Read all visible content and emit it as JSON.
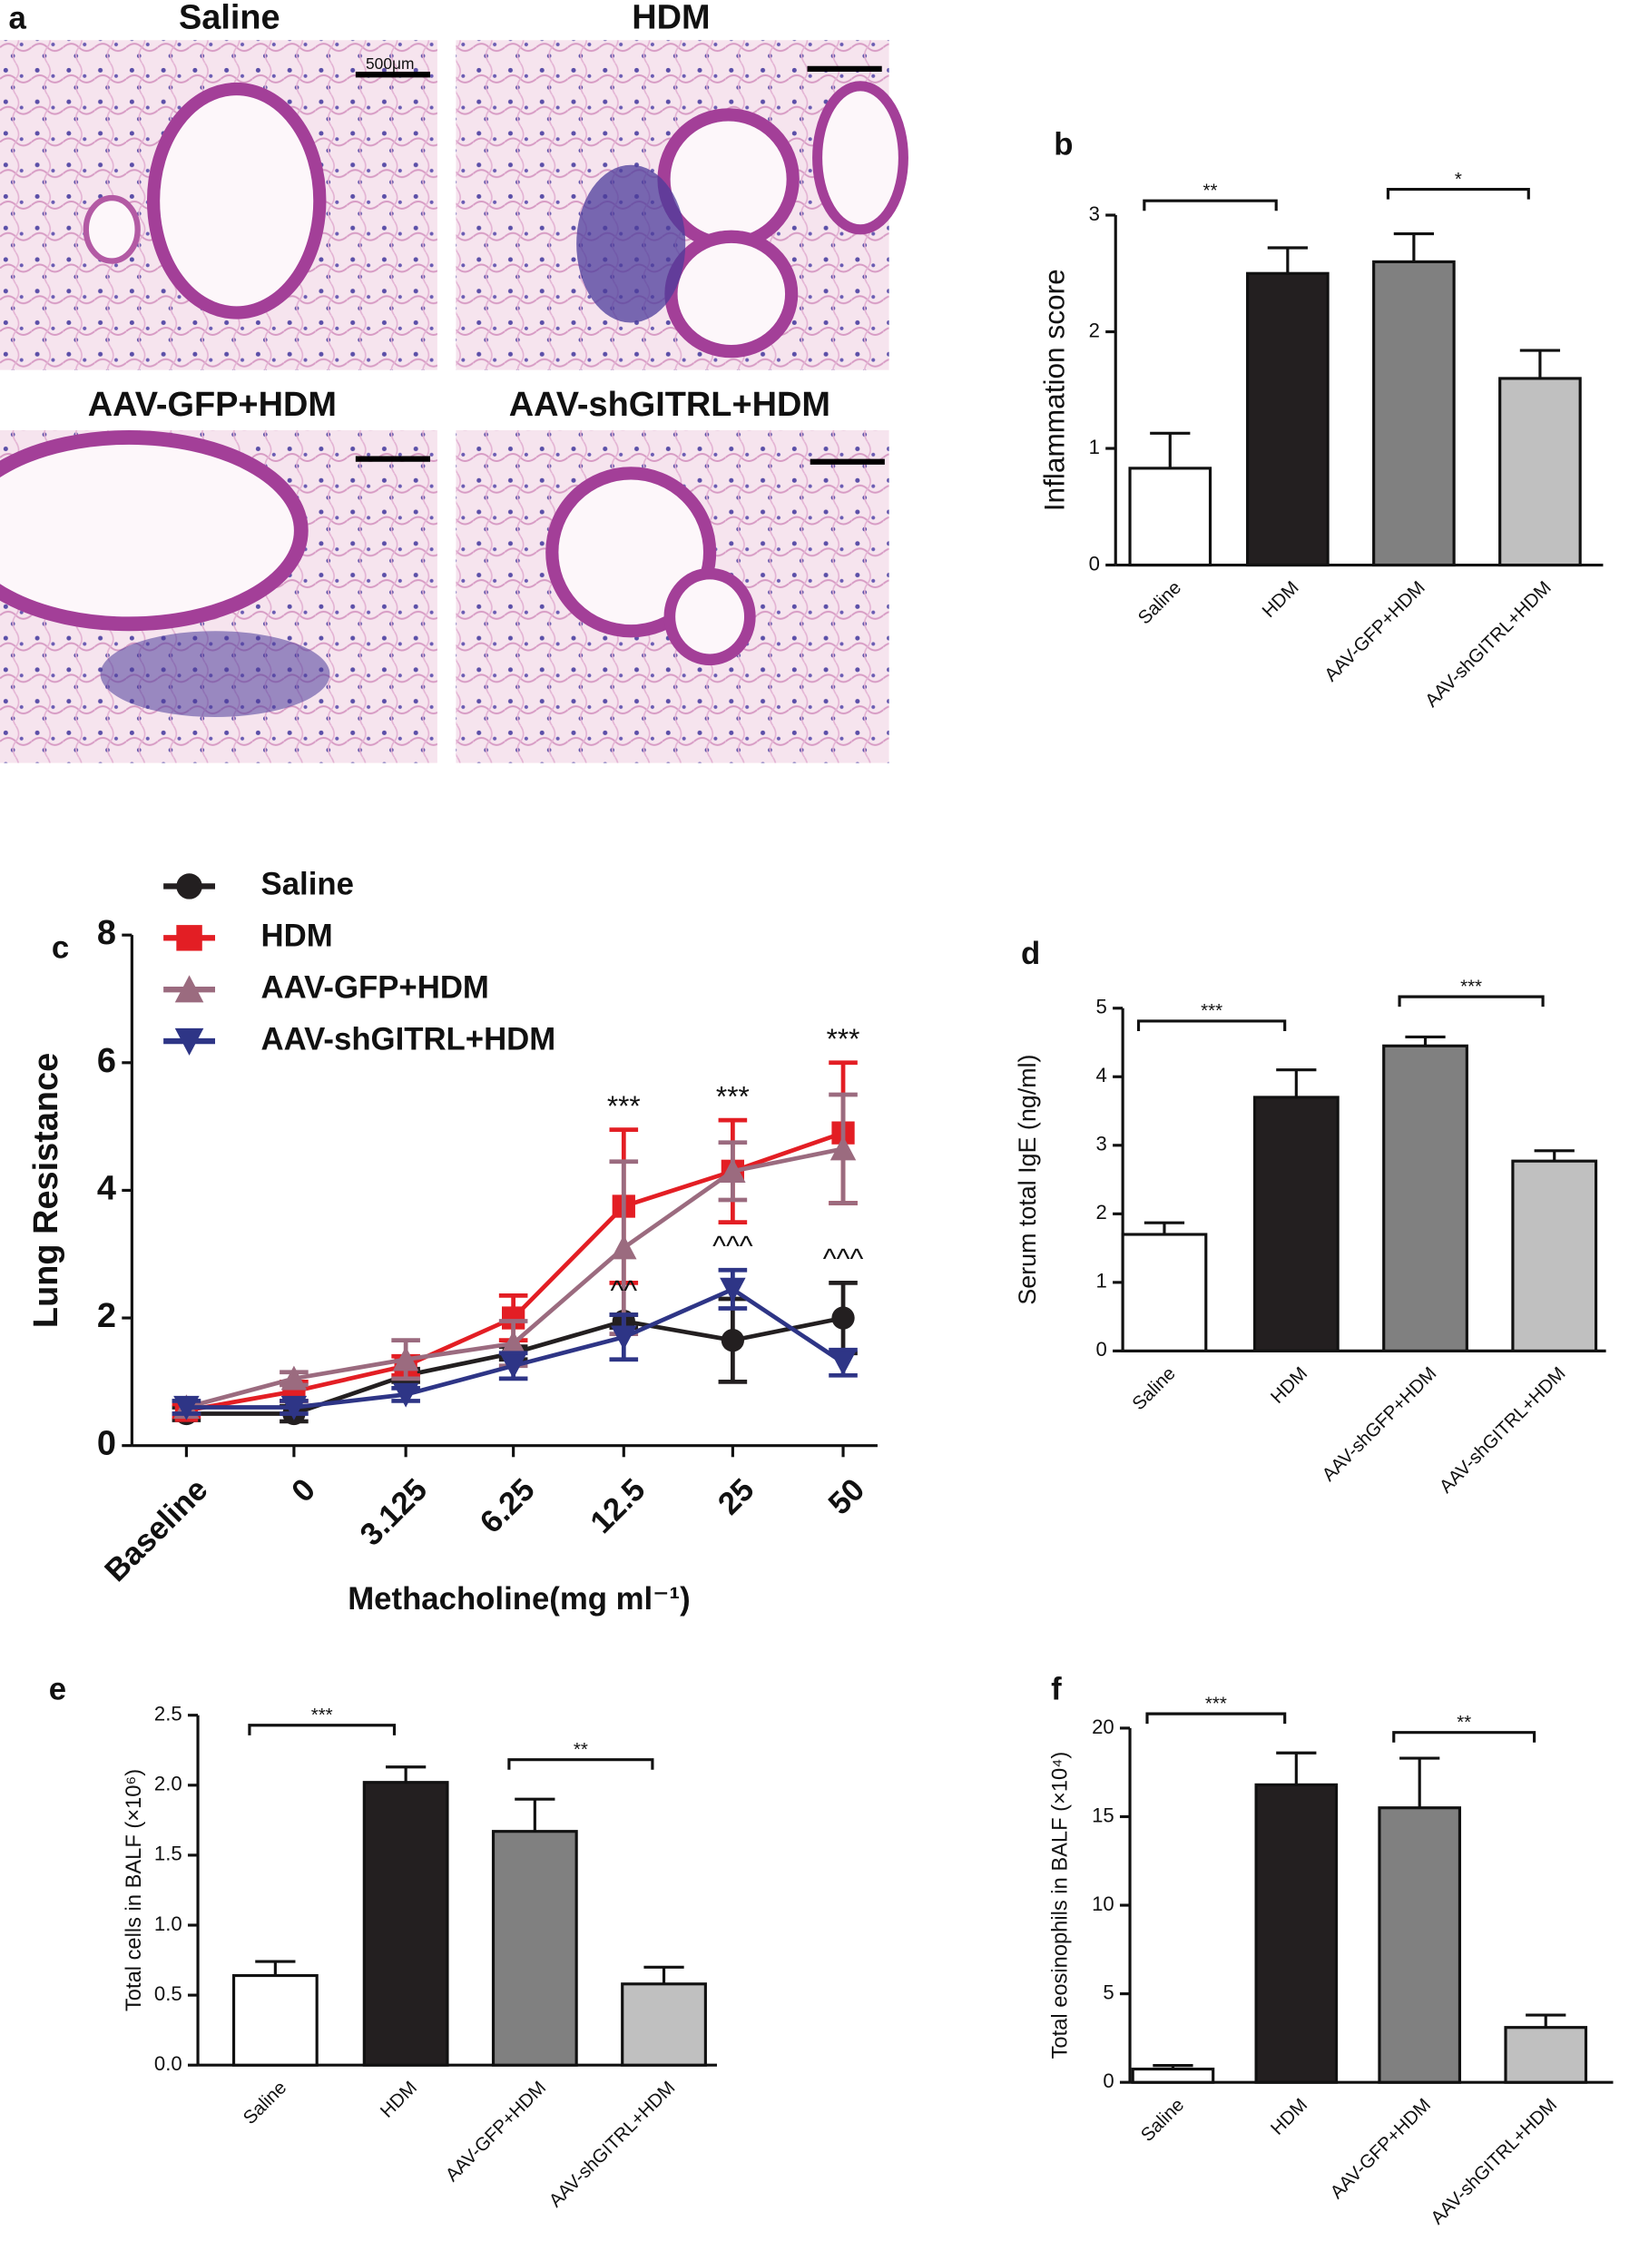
{
  "figure_a": {
    "panel": "a",
    "images": [
      {
        "title": "Saline",
        "scale_bar": "500μm"
      },
      {
        "title": "HDM"
      },
      {
        "title": "AAV-GFP+HDM"
      },
      {
        "title": "AAV-shGITRL+HDM"
      }
    ]
  },
  "chart_data": [
    {
      "type": "bar",
      "panel": "b",
      "ylabel": "Inflammation score",
      "categories": [
        "Saline",
        "HDM",
        "AAV-GFP+HDM",
        "AAV-shGITRL+HDM"
      ],
      "values": [
        0.83,
        2.5,
        2.6,
        1.6
      ],
      "errors": [
        0.3,
        0.22,
        0.24,
        0.24
      ],
      "colors": [
        "#ffffff",
        "#231f20",
        "#808080",
        "#c0c0c0"
      ],
      "ylim": [
        0,
        3
      ],
      "yticks": [
        0,
        1,
        2,
        3
      ],
      "annotations": [
        {
          "text": "**",
          "between": [
            "Saline",
            "HDM"
          ]
        },
        {
          "text": "*",
          "between": [
            "AAV-GFP+HDM",
            "AAV-shGITRL+HDM"
          ]
        }
      ]
    },
    {
      "type": "line",
      "panel": "c",
      "xlabel": "Methacholine(mg ml⁻¹)",
      "ylabel": "Lung Resistance",
      "categories": [
        "Baseline",
        "0",
        "3.125",
        "6.25",
        "12.5",
        "25",
        "50"
      ],
      "series": [
        {
          "name": "Saline",
          "color": "#231f20",
          "marker": "circle",
          "values": [
            0.5,
            0.5,
            1.1,
            1.45,
            1.95,
            1.65,
            2.0
          ],
          "errors": [
            0.1,
            0.12,
            0.1,
            0.1,
            0.1,
            0.65,
            0.55
          ]
        },
        {
          "name": "HDM",
          "color": "#e31e24",
          "marker": "square",
          "values": [
            0.55,
            0.85,
            1.25,
            2.0,
            3.75,
            4.3,
            4.9
          ],
          "errors": [
            0.1,
            0.15,
            0.15,
            0.35,
            1.2,
            0.8,
            1.1
          ]
        },
        {
          "name": "AAV-GFP+HDM",
          "color": "#9b6b7f",
          "marker": "triangle-up",
          "values": [
            0.6,
            1.05,
            1.35,
            1.6,
            3.1,
            4.3,
            4.65
          ],
          "errors": [
            0.1,
            0.1,
            0.3,
            0.35,
            1.35,
            0.45,
            0.85
          ]
        },
        {
          "name": "AAV-shGITRL+HDM",
          "color": "#2e3586",
          "marker": "triangle-down",
          "values": [
            0.6,
            0.6,
            0.8,
            1.25,
            1.7,
            2.45,
            1.3
          ],
          "errors": [
            0.1,
            0.1,
            0.1,
            0.2,
            0.35,
            0.3,
            0.2
          ]
        }
      ],
      "ylim": [
        0,
        8
      ],
      "yticks": [
        0,
        2,
        4,
        6,
        8
      ],
      "annotations": [
        {
          "text": "***",
          "category": "12.5",
          "above": [
            "HDM",
            "AAV-GFP+HDM"
          ]
        },
        {
          "text": "***",
          "category": "25",
          "above": [
            "HDM",
            "AAV-GFP+HDM"
          ]
        },
        {
          "text": "***",
          "category": "50",
          "above": [
            "HDM",
            "AAV-GFP+HDM"
          ]
        },
        {
          "text": "^^",
          "category": "12.5",
          "above": [
            "Saline",
            "AAV-shGITRL+HDM"
          ]
        },
        {
          "text": "^^^",
          "category": "25",
          "above": [
            "Saline",
            "AAV-shGITRL+HDM"
          ]
        },
        {
          "text": "^^^",
          "category": "50",
          "above": [
            "Saline",
            "AAV-shGITRL+HDM"
          ]
        }
      ]
    },
    {
      "type": "bar",
      "panel": "d",
      "ylabel": "Serum total IgE (ng/ml)",
      "categories": [
        "Saline",
        "HDM",
        "AAV-shGFP+HDM",
        "AAV-shGITRL+HDM"
      ],
      "values": [
        1.7,
        3.7,
        4.45,
        2.77
      ],
      "errors": [
        0.17,
        0.4,
        0.13,
        0.15
      ],
      "colors": [
        "#ffffff",
        "#231f20",
        "#808080",
        "#c0c0c0"
      ],
      "ylim": [
        0,
        5
      ],
      "yticks": [
        0,
        1,
        2,
        3,
        4,
        5
      ],
      "annotations": [
        {
          "text": "***",
          "between": [
            "Saline",
            "HDM"
          ]
        },
        {
          "text": "***",
          "between": [
            "AAV-shGFP+HDM",
            "AAV-shGITRL+HDM"
          ]
        }
      ]
    },
    {
      "type": "bar",
      "panel": "e",
      "ylabel": "Total cells in BALF (×10⁶)",
      "categories": [
        "Saline",
        "HDM",
        "AAV-GFP+HDM",
        "AAV-shGITRL+HDM"
      ],
      "values": [
        0.64,
        2.02,
        1.67,
        0.58
      ],
      "errors": [
        0.1,
        0.11,
        0.23,
        0.12
      ],
      "colors": [
        "#ffffff",
        "#231f20",
        "#808080",
        "#c0c0c0"
      ],
      "ylim": [
        0,
        2.5
      ],
      "yticks": [
        {
          "value": 0,
          "label": "0.0"
        },
        0.5,
        {
          "value": 1,
          "label": "1.0"
        },
        1.5,
        {
          "value": 2,
          "label": "2.0"
        },
        2.5
      ],
      "annotations": [
        {
          "text": "***",
          "between": [
            "Saline",
            "HDM"
          ]
        },
        {
          "text": "**",
          "between": [
            "AAV-GFP+HDM",
            "AAV-shGITRL+HDM"
          ]
        }
      ]
    },
    {
      "type": "bar",
      "panel": "f",
      "ylabel": "Total eosinophils in BALF (×10⁴)",
      "categories": [
        "Saline",
        "HDM",
        "AAV-GFP+HDM",
        "AAV-shGITRL+HDM"
      ],
      "values": [
        0.75,
        16.8,
        15.5,
        3.1
      ],
      "errors": [
        0.2,
        1.8,
        2.8,
        0.7
      ],
      "colors": [
        "#ffffff",
        "#231f20",
        "#808080",
        "#c0c0c0"
      ],
      "ylim": [
        0,
        20
      ],
      "yticks": [
        0,
        5,
        10,
        15,
        20
      ],
      "annotations": [
        {
          "text": "***",
          "between": [
            "Saline",
            "HDM"
          ]
        },
        {
          "text": "**",
          "between": [
            "AAV-GFP+HDM",
            "AAV-shGITRL+HDM"
          ]
        }
      ]
    }
  ]
}
